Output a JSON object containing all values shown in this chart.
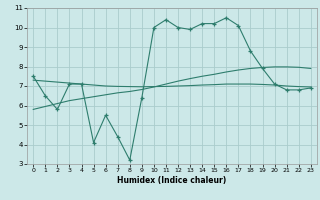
{
  "title": "",
  "xlabel": "Humidex (Indice chaleur)",
  "ylabel": "",
  "color": "#2e7d6d",
  "background_color": "#cce8e8",
  "grid_color": "#aacccc",
  "x": [
    0,
    1,
    2,
    3,
    4,
    5,
    6,
    7,
    8,
    9,
    10,
    11,
    12,
    13,
    14,
    15,
    16,
    17,
    18,
    19,
    20,
    21,
    22,
    23
  ],
  "y_main": [
    7.5,
    6.5,
    5.8,
    7.1,
    7.1,
    4.1,
    5.5,
    4.4,
    3.2,
    6.4,
    10.0,
    10.4,
    10.0,
    9.9,
    10.2,
    10.2,
    10.5,
    10.1,
    8.8,
    7.9,
    7.1,
    6.8,
    6.8,
    6.9
  ],
  "y_trend1": [
    7.3,
    7.25,
    7.2,
    7.15,
    7.1,
    7.05,
    7.0,
    6.98,
    6.97,
    6.96,
    6.97,
    6.98,
    7.0,
    7.02,
    7.05,
    7.07,
    7.1,
    7.1,
    7.1,
    7.08,
    7.05,
    7.0,
    6.97,
    6.95
  ],
  "y_trend2": [
    5.8,
    5.95,
    6.1,
    6.25,
    6.35,
    6.45,
    6.55,
    6.65,
    6.72,
    6.82,
    6.95,
    7.1,
    7.25,
    7.38,
    7.5,
    7.6,
    7.72,
    7.82,
    7.9,
    7.95,
    7.98,
    7.98,
    7.96,
    7.9
  ],
  "xlim": [
    -0.5,
    23.5
  ],
  "ylim": [
    3,
    11
  ],
  "yticks": [
    3,
    4,
    5,
    6,
    7,
    8,
    9,
    10,
    11
  ],
  "xticks": [
    0,
    1,
    2,
    3,
    4,
    5,
    6,
    7,
    8,
    9,
    10,
    11,
    12,
    13,
    14,
    15,
    16,
    17,
    18,
    19,
    20,
    21,
    22,
    23
  ]
}
